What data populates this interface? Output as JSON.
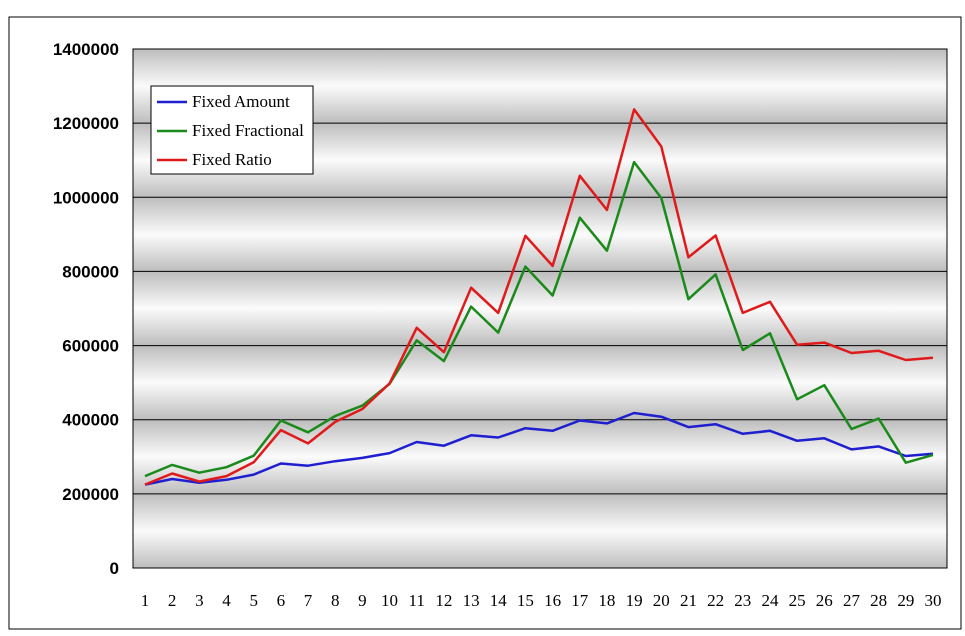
{
  "chart_data": {
    "type": "line",
    "title": "",
    "xlabel": "",
    "ylabel": "",
    "x": [
      1,
      2,
      3,
      4,
      5,
      6,
      7,
      8,
      9,
      10,
      11,
      12,
      13,
      14,
      15,
      16,
      17,
      18,
      19,
      20,
      21,
      22,
      23,
      24,
      25,
      26,
      27,
      28,
      29,
      30
    ],
    "ylim": [
      0,
      1400000
    ],
    "yticks": [
      0,
      200000,
      400000,
      600000,
      800000,
      1000000,
      1200000,
      1400000
    ],
    "grid": true,
    "legend_position": "top-left",
    "series": [
      {
        "name": "Fixed Amount",
        "color": "#1f1fd0",
        "values": [
          225000,
          240000,
          230000,
          238000,
          252000,
          282000,
          276000,
          288000,
          297000,
          310000,
          340000,
          330000,
          358000,
          352000,
          377000,
          370000,
          398000,
          390000,
          418000,
          408000,
          380000,
          388000,
          362000,
          370000,
          343000,
          350000,
          320000,
          328000,
          302000,
          308000
        ]
      },
      {
        "name": "Fixed Fractional",
        "color": "#1a8a1a",
        "values": [
          248000,
          278000,
          257000,
          272000,
          303000,
          398000,
          366000,
          410000,
          438000,
          497000,
          614000,
          558000,
          705000,
          635000,
          813000,
          735000,
          945000,
          856000,
          1095000,
          998000,
          725000,
          792000,
          588000,
          633000,
          455000,
          493000,
          375000,
          403000,
          284000,
          305000
        ]
      },
      {
        "name": "Fixed Ratio",
        "color": "#e01a1a",
        "values": [
          225000,
          255000,
          233000,
          248000,
          285000,
          372000,
          336000,
          394000,
          429000,
          498000,
          648000,
          582000,
          756000,
          688000,
          896000,
          815000,
          1058000,
          966000,
          1237000,
          1137000,
          838000,
          897000,
          688000,
          718000,
          602000,
          608000,
          580000,
          586000,
          561000,
          567000
        ]
      }
    ]
  }
}
